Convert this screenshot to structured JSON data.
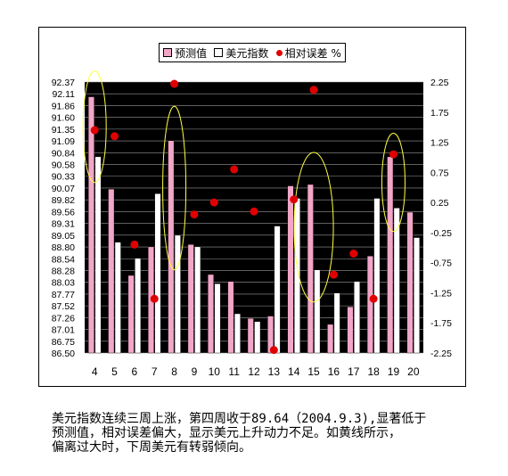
{
  "chart_data": {
    "type": "bar",
    "categories": [
      "4",
      "5",
      "6",
      "7",
      "8",
      "9",
      "10",
      "11",
      "12",
      "13",
      "14",
      "15",
      "16",
      "17",
      "18",
      "19",
      "20"
    ],
    "series": [
      {
        "name": "预测值",
        "kind": "bar",
        "color": "#f2a6c8",
        "values": [
          92.05,
          90.05,
          88.18,
          88.8,
          91.1,
          88.85,
          88.2,
          88.05,
          87.25,
          87.3,
          90.12,
          90.15,
          87.12,
          87.5,
          88.6,
          90.75,
          89.55
        ]
      },
      {
        "name": "美元指数",
        "kind": "bar",
        "color": "#ffffff",
        "values": [
          90.75,
          88.9,
          88.55,
          89.95,
          89.05,
          88.8,
          88.0,
          87.35,
          87.18,
          89.25,
          89.85,
          88.3,
          87.8,
          88.05,
          89.85,
          89.64,
          89.0
        ]
      },
      {
        "name": "相对误差 %",
        "kind": "scatter",
        "color": "#e00000",
        "axis": "right",
        "values": [
          1.45,
          1.35,
          -0.45,
          -1.35,
          2.22,
          0.05,
          0.25,
          0.8,
          0.1,
          -2.2,
          0.3,
          2.12,
          -0.95,
          -0.6,
          -1.35,
          1.05,
          null
        ]
      }
    ],
    "y_ticks": [
      "86.50",
      "86.75",
      "87.01",
      "87.26",
      "87.52",
      "87.77",
      "88.03",
      "88.28",
      "88.54",
      "88.80",
      "89.05",
      "89.31",
      "89.56",
      "89.82",
      "90.07",
      "90.33",
      "90.58",
      "90.84",
      "91.09",
      "91.35",
      "91.60",
      "91.86",
      "92.11",
      "92.37"
    ],
    "ylim": [
      86.5,
      92.37
    ],
    "y2_ticks": [
      "2.25",
      "1.75",
      "1.25",
      "0.75",
      "0.25",
      "-0.25",
      "-0.75",
      "-1.25",
      "-1.75",
      "-2.25"
    ],
    "y2lim": [
      -2.25,
      2.25
    ],
    "plot_background": "#000000",
    "gridlines": true,
    "highlight_ellipses": [
      {
        "category": "4"
      },
      {
        "category": "8"
      },
      {
        "category": "15"
      },
      {
        "category": "19"
      }
    ],
    "ellipse_color": "#ffff40",
    "legend_position": "top"
  },
  "caption": {
    "line1": "美元指数连续三周上涨，第四周收于89.64（2004.9.3),显著低于",
    "line2": "预测值，相对误差偏大，显示美元上升动力不足。如黄线所示，",
    "line3": "偏离过大时，下周美元有转弱倾向。"
  }
}
